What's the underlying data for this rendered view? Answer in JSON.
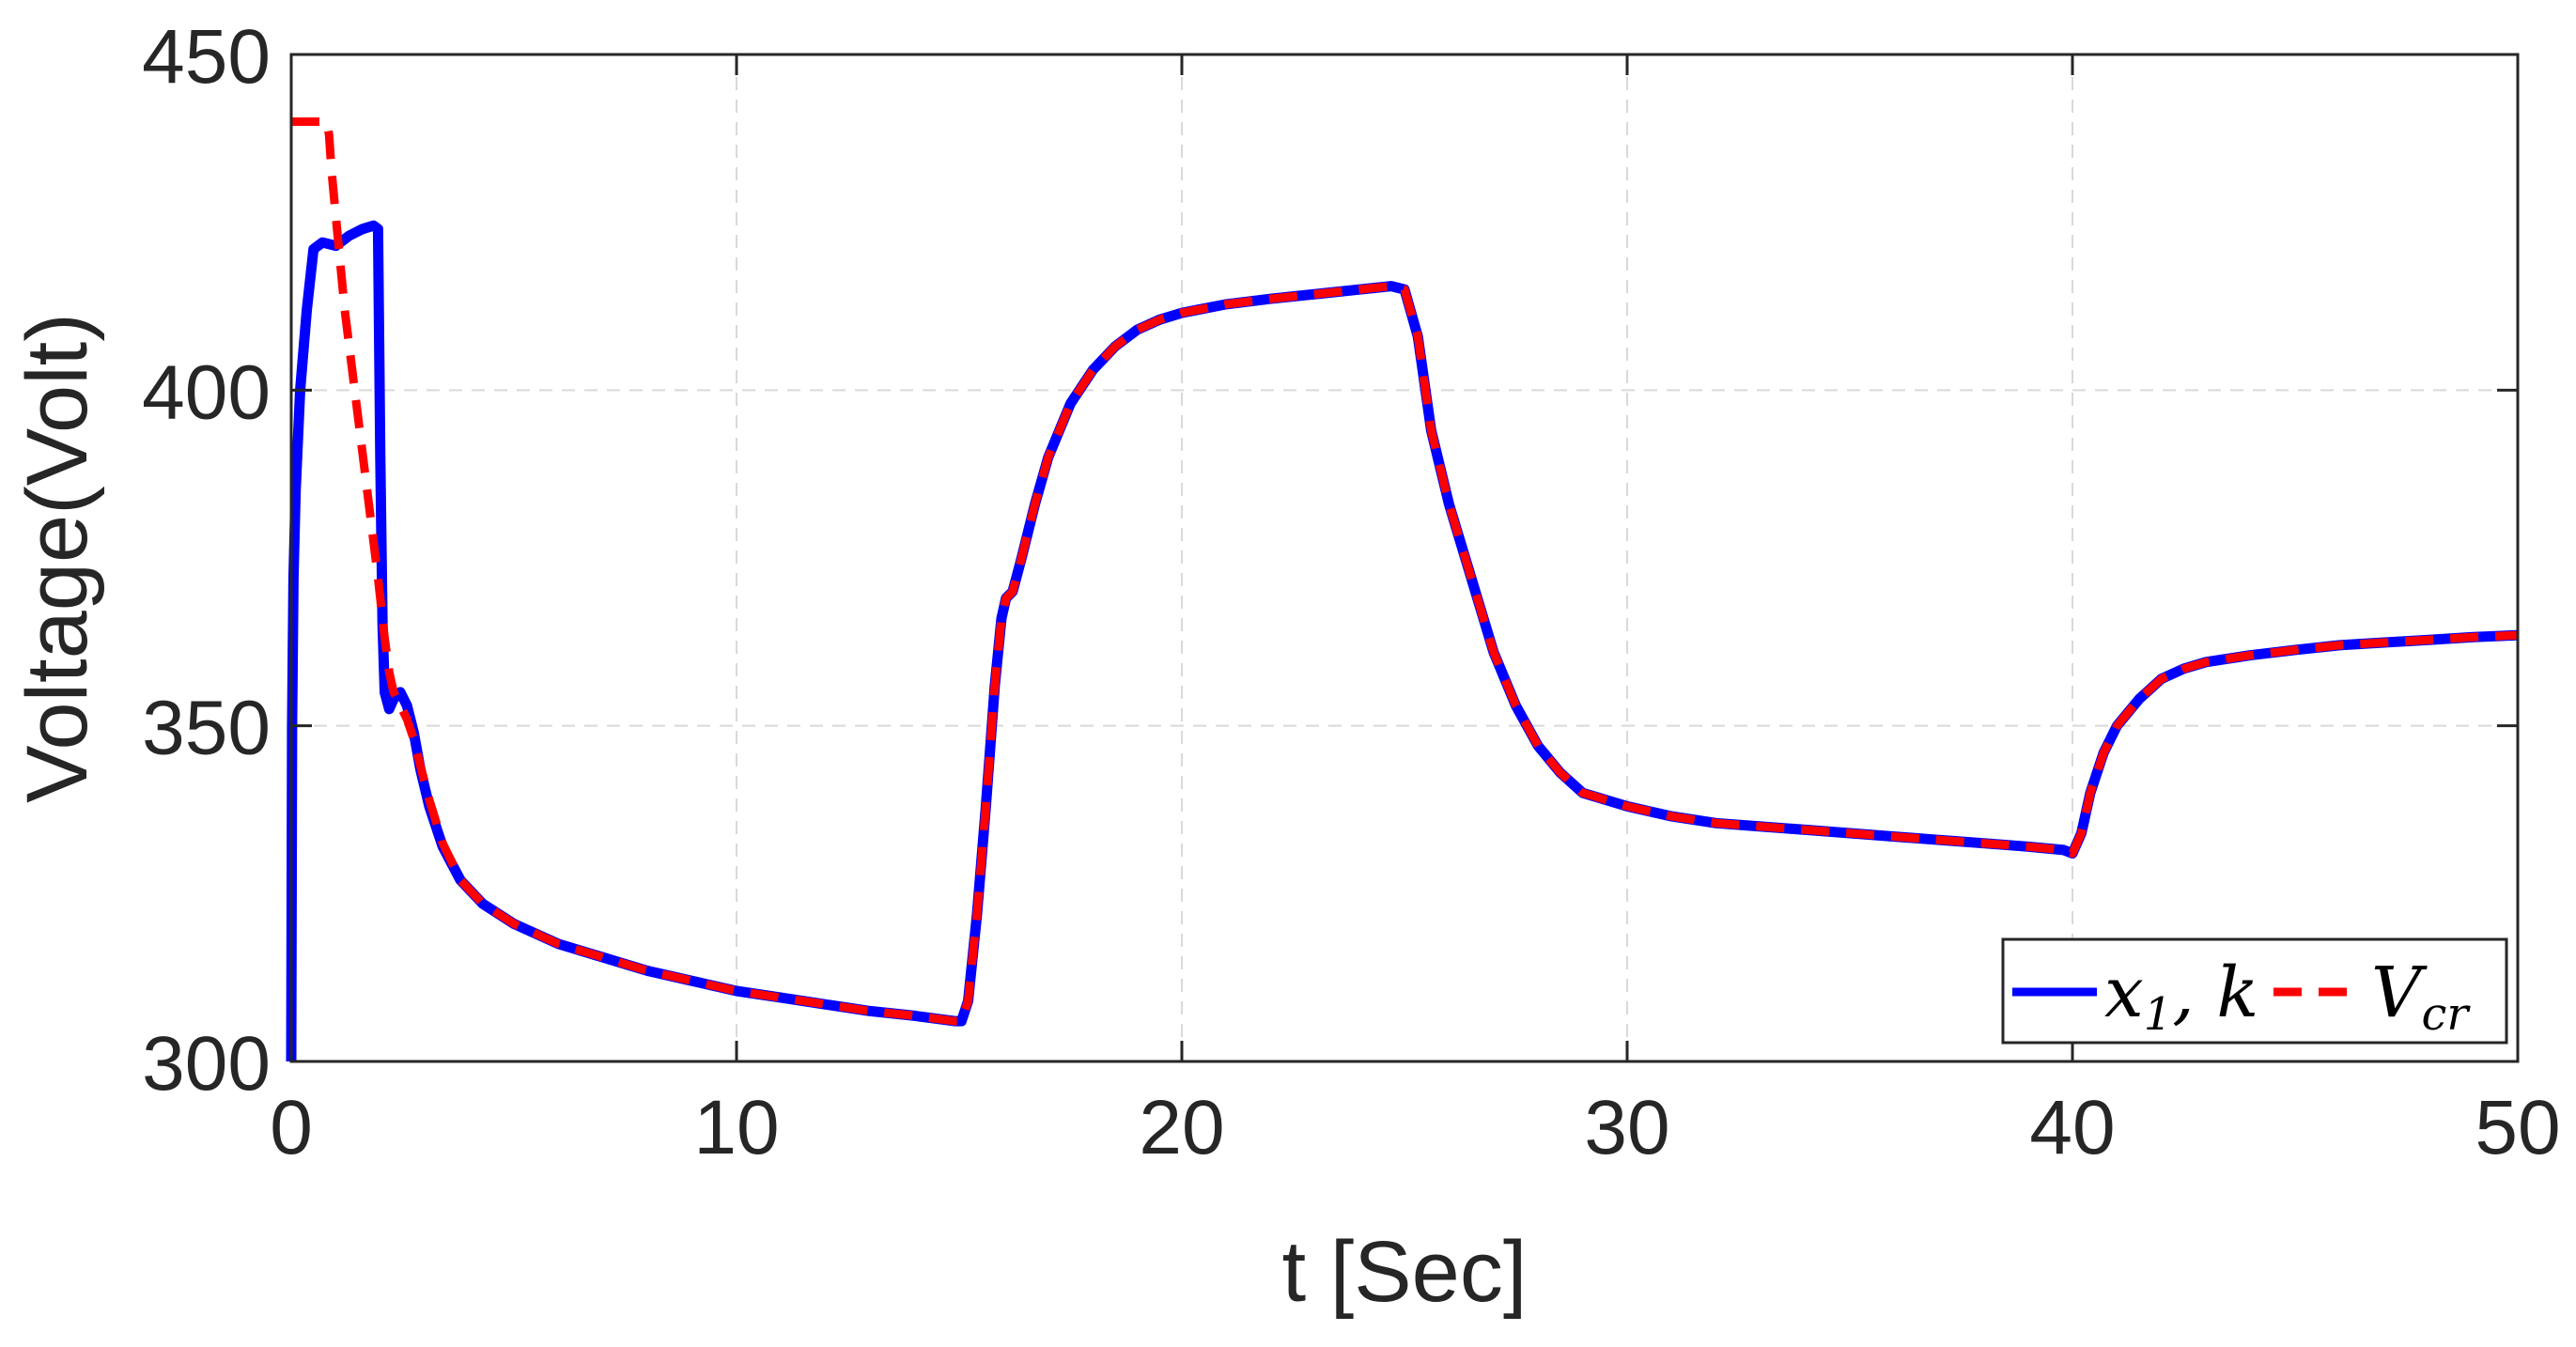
{
  "chart_data": {
    "type": "line",
    "xlabel": "t [Sec]",
    "ylabel": "Voltage(Volt)",
    "xlim": [
      0,
      50
    ],
    "ylim": [
      300,
      450
    ],
    "xticks": [
      "0",
      "10",
      "20",
      "30",
      "40",
      "50"
    ],
    "yticks": [
      "300",
      "350",
      "400",
      "450"
    ],
    "grid": true,
    "legend_position": "bottom-right",
    "series": [
      {
        "name": "x1,k",
        "legend_main": "x",
        "legend_sub": "1",
        "legend_rest": ", k",
        "color": "#0000ff",
        "style": "solid",
        "x": [
          0,
          0.02,
          0.05,
          0.1,
          0.2,
          0.35,
          0.5,
          0.7,
          1.0,
          1.3,
          1.6,
          1.85,
          1.95,
          2.0,
          2.05,
          2.1,
          2.2,
          2.3,
          2.45,
          2.6,
          2.75,
          2.9,
          3.1,
          3.4,
          3.8,
          4.3,
          5,
          6,
          7,
          8,
          9,
          10,
          11,
          12,
          13,
          14,
          14.9,
          15.05,
          15.2,
          15.4,
          15.6,
          15.8,
          15.95,
          16.05,
          16.2,
          16.4,
          16.7,
          17,
          17.5,
          18,
          18.5,
          19,
          19.5,
          20,
          21,
          22,
          23,
          24,
          24.7,
          25,
          25.3,
          25.6,
          26,
          26.5,
          27,
          27.5,
          28,
          28.5,
          29,
          30,
          31,
          32,
          33,
          34,
          35,
          36,
          37,
          38,
          39,
          39.8,
          40,
          40.2,
          40.4,
          40.7,
          41,
          41.5,
          42,
          42.5,
          43,
          44,
          45,
          46,
          47,
          48,
          49,
          50
        ],
        "values": [
          300,
          350,
          372,
          385,
          400,
          412,
          421,
          422,
          421.5,
          423,
          424,
          424.5,
          424,
          390,
          365,
          355,
          352.5,
          354,
          355,
          353,
          349,
          343.5,
          338,
          332,
          327,
          323.5,
          320.5,
          317.5,
          315.5,
          313.5,
          312,
          310.5,
          309.5,
          308.5,
          307.5,
          306.8,
          306,
          306,
          309,
          322,
          338,
          356,
          366,
          369,
          370,
          375,
          383,
          390,
          398,
          403,
          406.5,
          409,
          410.5,
          411.5,
          412.8,
          413.6,
          414.3,
          415,
          415.5,
          415,
          408,
          394,
          383,
          372,
          361,
          353,
          347,
          343,
          340,
          338,
          336.5,
          335.5,
          335,
          334.5,
          334,
          333.5,
          333,
          332.5,
          332,
          331.5,
          331,
          334,
          340,
          346,
          350,
          354,
          357,
          358.5,
          359.5,
          360.5,
          361.3,
          362,
          362.4,
          362.8,
          363.2,
          363.5
        ]
      },
      {
        "name": "Vcr",
        "legend_main": "V",
        "legend_sub": "cr",
        "legend_rest": "",
        "color": "#ff0000",
        "style": "dashed",
        "x": [
          0,
          0.8,
          0.85,
          0.9,
          1.0,
          1.1,
          1.2,
          1.35,
          1.5,
          1.65,
          1.8,
          1.95,
          2.1,
          2.2,
          2.3,
          2.45,
          2.6,
          2.75,
          2.9,
          3.1,
          3.4,
          3.8,
          4.3,
          5,
          6,
          7,
          8,
          9,
          10,
          11,
          12,
          13,
          14,
          14.9,
          15.05,
          15.2,
          15.4,
          15.6,
          15.8,
          15.95,
          16.05,
          16.2,
          16.4,
          16.7,
          17,
          17.5,
          18,
          18.5,
          19,
          19.5,
          20,
          21,
          22,
          23,
          24,
          24.7,
          25,
          25.3,
          25.6,
          26,
          26.5,
          27,
          27.5,
          28,
          28.5,
          29,
          30,
          31,
          32,
          33,
          34,
          35,
          36,
          37,
          38,
          39,
          39.8,
          40,
          40.2,
          40.4,
          40.7,
          41,
          41.5,
          42,
          42.5,
          43,
          44,
          45,
          46,
          47,
          48,
          49,
          50
        ],
        "values": [
          440,
          440,
          438,
          433,
          426,
          419,
          412,
          404,
          396,
          388,
          380,
          372,
          363,
          358,
          355,
          353,
          351,
          348,
          344,
          339,
          332.5,
          327,
          323.5,
          320.5,
          317.5,
          315.5,
          313.5,
          312,
          310.5,
          309.5,
          308.5,
          307.5,
          306.8,
          306,
          306,
          309,
          322,
          338,
          356,
          366,
          369,
          370,
          375,
          383,
          390,
          398,
          403,
          406.5,
          409,
          410.5,
          411.5,
          412.8,
          413.6,
          414.3,
          415,
          415.5,
          415,
          408,
          394,
          383,
          372,
          361,
          353,
          347,
          343,
          340,
          338,
          336.5,
          335.5,
          335,
          334.5,
          334,
          333.5,
          333,
          332.5,
          332,
          331.5,
          331,
          334,
          340,
          346,
          350,
          354,
          357,
          358.5,
          359.5,
          360.5,
          361.3,
          362,
          362.4,
          362.8,
          363.2,
          363.5
        ]
      }
    ]
  }
}
